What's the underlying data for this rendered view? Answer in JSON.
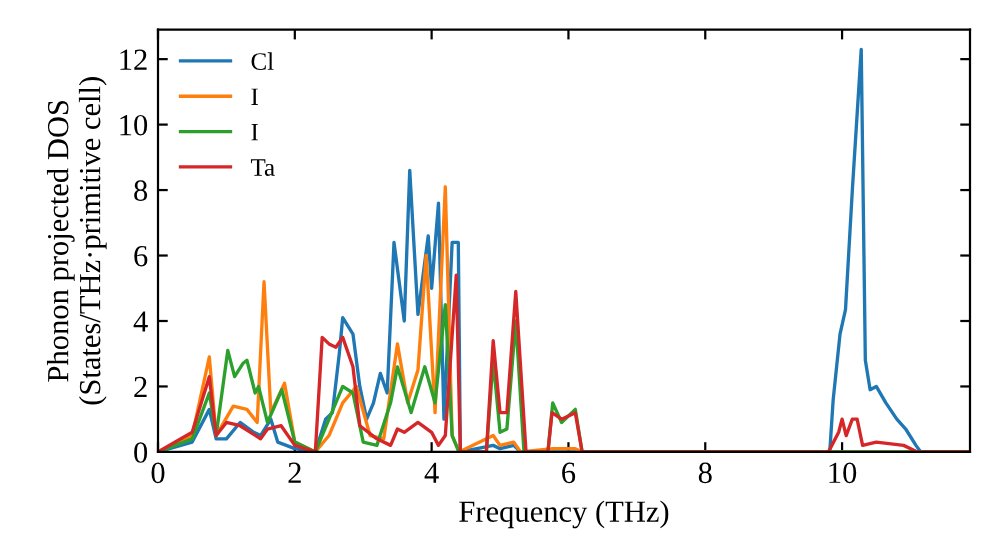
{
  "chart_data": {
    "type": "line",
    "xlabel": "Frequency (THz)",
    "ylabel": "Phonon projected DOS\n(States/THz·primitive cell)",
    "xlim": [
      0,
      11.87
    ],
    "ylim": [
      0,
      12.9
    ],
    "xticks": [
      0,
      2,
      4,
      6,
      8,
      10
    ],
    "yticks": [
      0,
      2,
      4,
      6,
      8,
      10,
      12
    ],
    "grid": false,
    "legend": "top left",
    "marker": "none",
    "line_style": "solid",
    "series": [
      {
        "name": "Cl",
        "color": "#1f77b4",
        "x": [
          0,
          0.5,
          0.75,
          0.85,
          1.0,
          1.2,
          1.4,
          1.5,
          1.65,
          1.75,
          2.0,
          2.3,
          2.45,
          2.55,
          2.65,
          2.7,
          2.85,
          2.95,
          3.05,
          3.15,
          3.25,
          3.35,
          3.45,
          3.6,
          3.68,
          3.8,
          3.95,
          4.0,
          4.1,
          4.18,
          4.3,
          4.39,
          4.42,
          4.9,
          5.0,
          5.2,
          5.3,
          9.82,
          9.87,
          9.97,
          10.05,
          10.15,
          10.28,
          10.34,
          10.41,
          10.5,
          10.64,
          10.8,
          10.93,
          11.08,
          11.15,
          11.87
        ],
        "values": [
          0,
          0.3,
          1.3,
          0.4,
          0.4,
          0.9,
          0.6,
          0.5,
          1.0,
          0.3,
          0.1,
          0,
          1.0,
          1.2,
          3.0,
          4.1,
          3.6,
          2.0,
          1.0,
          1.5,
          2.4,
          1.8,
          6.4,
          4.0,
          8.6,
          4.2,
          6.6,
          5.0,
          7.6,
          1.0,
          6.4,
          6.4,
          0,
          0.2,
          0.1,
          0.2,
          0,
          0,
          1.6,
          3.6,
          4.35,
          8.0,
          12.3,
          2.8,
          1.9,
          2.0,
          1.5,
          1.0,
          0.7,
          0.2,
          0,
          0
        ]
      },
      {
        "name": "I",
        "color": "#ff7f0e",
        "x": [
          0,
          0.5,
          0.75,
          0.85,
          1.1,
          1.3,
          1.45,
          1.55,
          1.65,
          1.85,
          2.0,
          2.3,
          2.5,
          2.7,
          2.9,
          3.1,
          3.3,
          3.5,
          3.65,
          3.8,
          3.92,
          4.05,
          4.2,
          4.3,
          4.4,
          4.9,
          5.0,
          5.2,
          5.3,
          5.77,
          5.9,
          6.1,
          6.2,
          11.87
        ],
        "values": [
          0,
          0.5,
          2.9,
          0.5,
          1.4,
          1.3,
          0.9,
          5.2,
          1.2,
          2.1,
          0.3,
          0,
          0.5,
          1.5,
          2.0,
          0.5,
          0.4,
          3.3,
          1.5,
          2.5,
          6.0,
          1.2,
          8.1,
          0.5,
          0,
          0.5,
          0.2,
          0.3,
          0,
          0.1,
          0.1,
          0.1,
          0,
          0
        ]
      },
      {
        "name": "I",
        "color": "#2ca02c",
        "x": [
          0,
          0.5,
          0.75,
          0.85,
          1.02,
          1.12,
          1.24,
          1.3,
          1.42,
          1.47,
          1.6,
          1.81,
          2.0,
          2.3,
          2.5,
          2.7,
          2.85,
          3.0,
          3.2,
          3.4,
          3.5,
          3.7,
          3.9,
          4.05,
          4.2,
          4.3,
          4.4,
          4.8,
          4.9,
          5.0,
          5.1,
          5.23,
          5.35,
          5.7,
          5.77,
          5.9,
          6.1,
          6.2,
          11.87
        ],
        "values": [
          0,
          0.4,
          1.8,
          0.5,
          3.1,
          2.3,
          2.7,
          2.8,
          1.8,
          2.0,
          0.9,
          1.9,
          0.3,
          0,
          1.0,
          2.0,
          1.8,
          0.3,
          0.2,
          1.5,
          2.6,
          1.2,
          2.6,
          1.5,
          4.5,
          0.5,
          0,
          0,
          2.8,
          0.6,
          0.7,
          4.0,
          0,
          0,
          1.5,
          0.9,
          1.3,
          0,
          0
        ]
      },
      {
        "name": "Ta",
        "color": "#d62728",
        "x": [
          0,
          0.5,
          0.75,
          0.85,
          1.0,
          1.2,
          1.5,
          1.6,
          1.8,
          2.0,
          2.3,
          2.4,
          2.5,
          2.6,
          2.7,
          2.85,
          2.95,
          3.2,
          3.4,
          3.5,
          3.6,
          3.8,
          4.0,
          4.1,
          4.2,
          4.36,
          4.42,
          4.8,
          4.9,
          5.0,
          5.1,
          5.23,
          5.38,
          5.7,
          5.76,
          5.9,
          6.1,
          6.2,
          9.8,
          9.85,
          9.95,
          10.0,
          10.06,
          10.15,
          10.22,
          10.3,
          10.5,
          10.9,
          11.1,
          11.87
        ],
        "values": [
          0,
          0.6,
          2.3,
          0.5,
          0.9,
          0.8,
          0.4,
          0.7,
          0.8,
          0.2,
          0,
          3.5,
          3.3,
          3.2,
          3.5,
          2.6,
          0.8,
          0.4,
          0.2,
          0.7,
          0.6,
          0.9,
          0.6,
          0.2,
          0.5,
          5.4,
          0,
          0,
          3.4,
          1.2,
          1.2,
          4.9,
          0,
          0,
          1.2,
          1.0,
          1.2,
          0,
          0,
          0.2,
          0.6,
          1.0,
          0.5,
          1.0,
          1.0,
          0.2,
          0.3,
          0.2,
          0,
          0
        ]
      }
    ]
  }
}
